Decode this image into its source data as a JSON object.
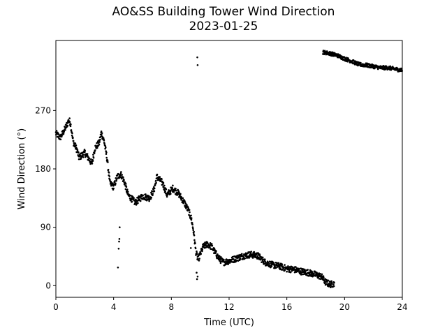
{
  "chart_data": {
    "type": "scatter",
    "title": "AO&SS Building Tower Wind Direction",
    "subtitle": "2023-01-25",
    "xlabel": "Time (UTC)",
    "ylabel": "Wind Direction (°)",
    "xlim": [
      0,
      24
    ],
    "ylim": [
      -18,
      378
    ],
    "xticks": [
      0,
      4,
      8,
      12,
      16,
      20,
      24
    ],
    "yticks": [
      0,
      90,
      180,
      270
    ],
    "grid": false,
    "marker_color": "#000000",
    "trend": [
      [
        0.0,
        235
      ],
      [
        0.3,
        228
      ],
      [
        0.5,
        236
      ],
      [
        0.7,
        245
      ],
      [
        0.9,
        255
      ],
      [
        1.0,
        252
      ],
      [
        1.2,
        222
      ],
      [
        1.45,
        210
      ],
      [
        1.6,
        198
      ],
      [
        1.75,
        200
      ],
      [
        2.0,
        205
      ],
      [
        2.3,
        195
      ],
      [
        2.5,
        188
      ],
      [
        2.7,
        212
      ],
      [
        3.0,
        220
      ],
      [
        3.15,
        236
      ],
      [
        3.35,
        222
      ],
      [
        3.55,
        195
      ],
      [
        3.75,
        158
      ],
      [
        4.0,
        152
      ],
      [
        4.25,
        168
      ],
      [
        4.5,
        172
      ],
      [
        4.75,
        160
      ],
      [
        5.0,
        140
      ],
      [
        5.5,
        128
      ],
      [
        6.0,
        138
      ],
      [
        6.5,
        135
      ],
      [
        6.8,
        148
      ],
      [
        7.0,
        168
      ],
      [
        7.4,
        158
      ],
      [
        7.7,
        140
      ],
      [
        8.1,
        150
      ],
      [
        8.5,
        142
      ],
      [
        8.9,
        128
      ],
      [
        9.2,
        115
      ],
      [
        9.4,
        102
      ],
      [
        9.55,
        82
      ],
      [
        9.7,
        52
      ],
      [
        9.85,
        40
      ],
      [
        10.0,
        48
      ],
      [
        10.2,
        60
      ],
      [
        10.5,
        64
      ],
      [
        10.8,
        60
      ],
      [
        11.0,
        52
      ],
      [
        11.3,
        42
      ],
      [
        11.6,
        36
      ],
      [
        12.0,
        38
      ],
      [
        12.5,
        42
      ],
      [
        13.0,
        46
      ],
      [
        13.5,
        48
      ],
      [
        14.0,
        46
      ],
      [
        14.5,
        36
      ],
      [
        15.0,
        32
      ],
      [
        15.5,
        30
      ],
      [
        16.0,
        26
      ],
      [
        16.5,
        25
      ],
      [
        17.0,
        22
      ],
      [
        17.5,
        20
      ],
      [
        18.0,
        17
      ],
      [
        18.4,
        14
      ],
      [
        18.7,
        5
      ],
      [
        19.0,
        2
      ],
      [
        19.3,
        3
      ]
    ],
    "trend_late": [
      [
        18.5,
        360
      ],
      [
        19.0,
        358
      ],
      [
        19.5,
        355
      ],
      [
        20.0,
        350
      ],
      [
        20.5,
        346
      ],
      [
        21.0,
        341
      ],
      [
        21.5,
        340
      ],
      [
        22.0,
        338
      ],
      [
        22.5,
        336
      ],
      [
        23.0,
        336
      ],
      [
        23.5,
        334
      ],
      [
        24.0,
        332
      ]
    ],
    "outliers": [
      [
        4.3,
        28
      ],
      [
        4.35,
        57
      ],
      [
        4.38,
        68
      ],
      [
        4.4,
        72
      ],
      [
        4.42,
        90
      ],
      [
        9.8,
        352
      ],
      [
        9.82,
        340
      ],
      [
        9.35,
        58
      ],
      [
        9.78,
        10
      ],
      [
        9.82,
        14
      ],
      [
        9.75,
        20
      ]
    ]
  }
}
